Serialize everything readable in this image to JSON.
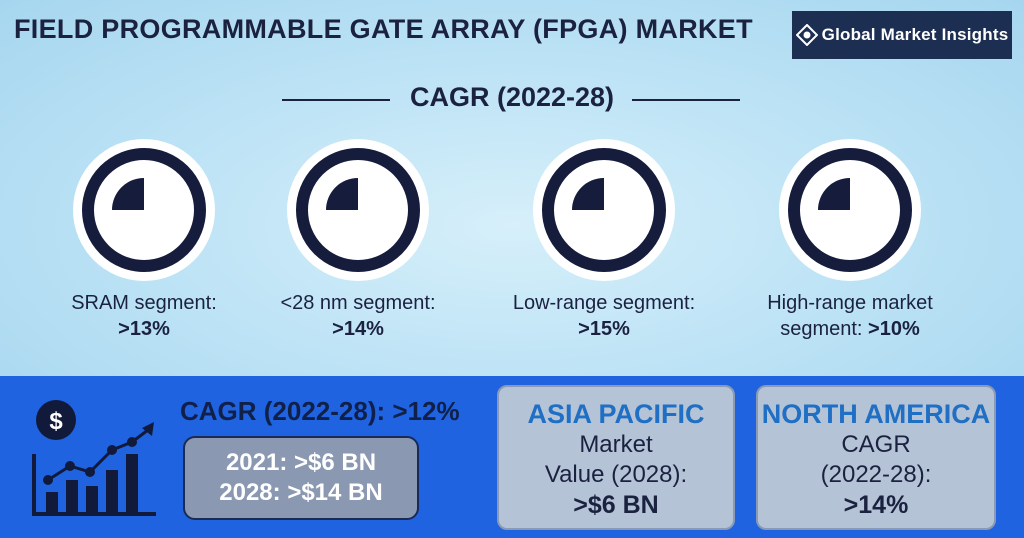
{
  "title": "FIELD PROGRAMMABLE GATE ARRAY (FPGA) MARKET",
  "logo": {
    "text": "Global Market Insights"
  },
  "cagr_heading": "CAGR (2022-28)",
  "segments": [
    {
      "label": "SRAM segment:",
      "value": ">13%"
    },
    {
      "label": "<28 nm segment:",
      "value": ">14%"
    },
    {
      "label": "Low-range segment:",
      "value": ">15%"
    },
    {
      "label_line1": "High-range market",
      "label": "segment:",
      "value": ">10%"
    }
  ],
  "overall": {
    "cagr": "CAGR (2022-28): >12%",
    "value_2021": "2021: >$6 BN",
    "value_2028": "2028: >$14 BN"
  },
  "asia_pacific": {
    "title": "ASIA PACIFIC",
    "line1": "Market",
    "line2": "Value (2028):",
    "value": ">$6 BN"
  },
  "north_america": {
    "title": "NORTH AMERICA",
    "line1": "CAGR",
    "line2": "(2022-28):",
    "value": ">14%"
  },
  "colors": {
    "navy": "#1b2240",
    "bottom_blue": "#1f63e0",
    "card_title_blue": "#1f6fc4"
  },
  "icons": [
    "dollar-trend-chart-icon",
    "pie-quarter-icon",
    "globe-logo-icon"
  ]
}
